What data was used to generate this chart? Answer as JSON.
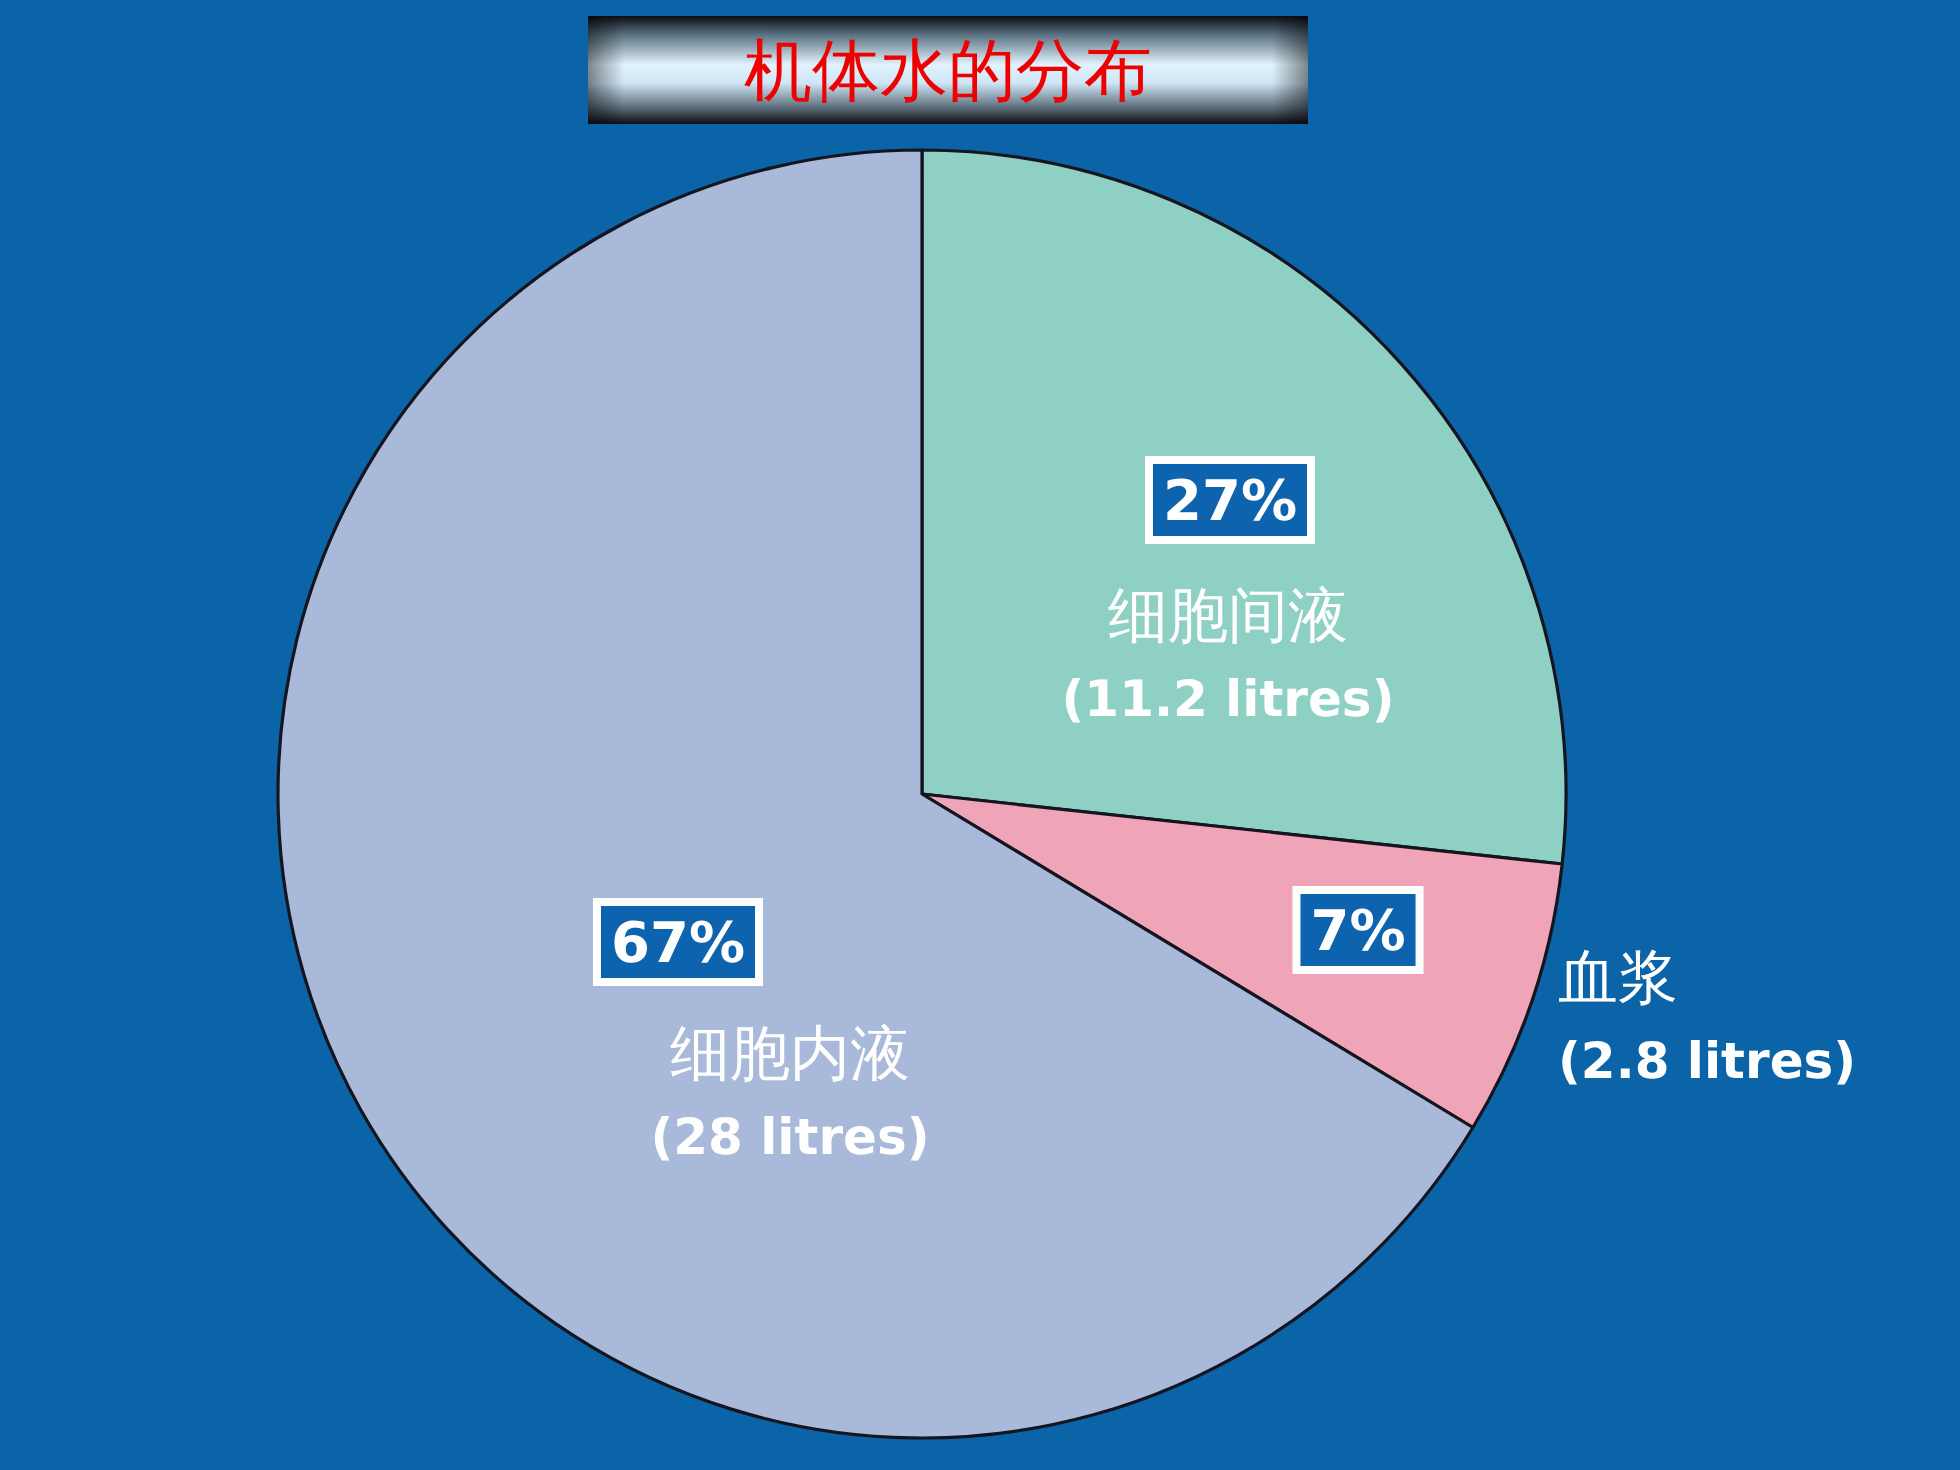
{
  "chart_data": {
    "type": "pie",
    "title": "机体水的分布",
    "categories": [
      "细胞间液\n(11.2 litres)",
      "血浆\n(2.8 litres)",
      "细胞内液\n(28 litres)"
    ],
    "values": [
      27,
      7,
      67
    ],
    "colors": [
      "#8fd0c4",
      "#f0a4b8",
      "#a9b9d9"
    ],
    "value_labels": [
      "27%",
      "7%",
      "67%"
    ]
  }
}
